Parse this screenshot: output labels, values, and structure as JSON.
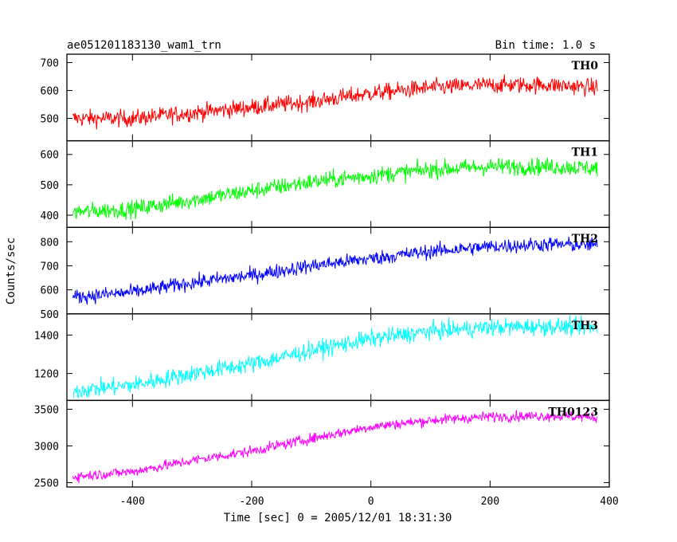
{
  "chart_data": {
    "type": "line",
    "title": "ae051201183130_wam1_trn",
    "subtitle": "Bin time: 1.0 s",
    "xlabel": "Time [sec] 0 = 2005/12/01 18:31:30",
    "ylabel": "Counts/sec",
    "xlim": [
      -510,
      400
    ],
    "x_ticks": [
      -400,
      -200,
      0,
      200,
      400
    ],
    "x": [
      -500,
      -400,
      -300,
      -200,
      -100,
      0,
      100,
      200,
      300,
      380
    ],
    "noise_note": "random scatter shown by the figure",
    "panels": [
      {
        "name": "TH0",
        "color": "#ff0000",
        "ylim": [
          420,
          730
        ],
        "y_ticks": [
          500,
          600,
          700
        ],
        "values": [
          500,
          500,
          520,
          540,
          560,
          590,
          610,
          620,
          620,
          610
        ],
        "noise": 30
      },
      {
        "name": "TH1",
        "color": "#00ff00",
        "ylim": [
          360,
          645
        ],
        "y_ticks": [
          400,
          500,
          600
        ],
        "values": [
          410,
          420,
          450,
          480,
          510,
          530,
          550,
          560,
          560,
          555
        ],
        "noise": 28
      },
      {
        "name": "TH2",
        "color": "#0000ff",
        "ylim": [
          500,
          860
        ],
        "y_ticks": [
          500,
          600,
          700,
          800
        ],
        "values": [
          570,
          590,
          630,
          660,
          700,
          730,
          760,
          780,
          790,
          785
        ],
        "noise": 30
      },
      {
        "name": "TH3",
        "color": "#00ffff",
        "ylim": [
          1060,
          1510
        ],
        "y_ticks": [
          1200,
          1400
        ],
        "values": [
          1110,
          1140,
          1200,
          1250,
          1320,
          1380,
          1420,
          1440,
          1445,
          1440
        ],
        "noise": 45
      },
      {
        "name": "TH0123",
        "color": "#ff00ff",
        "ylim": [
          2440,
          3620
        ],
        "y_ticks": [
          2500,
          3000,
          3500
        ],
        "values": [
          2580,
          2650,
          2800,
          2930,
          3100,
          3260,
          3350,
          3400,
          3410,
          3390
        ],
        "noise": 70
      }
    ]
  }
}
